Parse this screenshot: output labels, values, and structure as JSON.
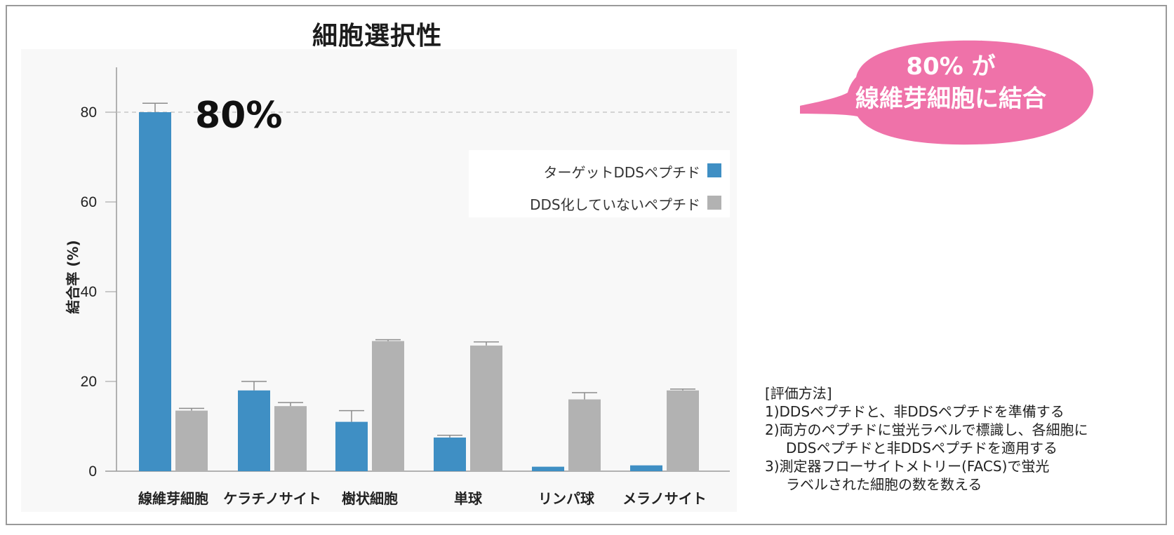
{
  "chart_data": {
    "type": "bar",
    "title": "細胞選択性",
    "ylabel": "結合率 (%)",
    "xlabel": "",
    "ylim": [
      0,
      90
    ],
    "yticks": [
      0,
      20,
      40,
      60,
      80
    ],
    "reference_line": 80,
    "categories": [
      "線維芽細胞",
      "ケラチノサイト",
      "樹状細胞",
      "単球",
      "リンパ球",
      "メラノサイト"
    ],
    "series": [
      {
        "name": "ターゲットDDSペプチド",
        "color": "#3f8fc4",
        "values": [
          80,
          18,
          11,
          7.5,
          1,
          1.3
        ],
        "errors": [
          2,
          2,
          2.5,
          0.5,
          0,
          0
        ]
      },
      {
        "name": "DDS化していないペプチド",
        "color": "#b2b2b2",
        "values": [
          13.5,
          14.5,
          29,
          28,
          16,
          18
        ],
        "errors": [
          0.5,
          0.8,
          0.3,
          0.8,
          1.5,
          0.3
        ]
      }
    ],
    "annotation": "80%"
  },
  "callout": {
    "line1": "80% が",
    "line2": "線維芽細胞に結合",
    "color": "#ef72a9"
  },
  "method": {
    "heading": "[評価方法]",
    "step1": "1)DDSペプチドと、非DDSペプチドを準備する",
    "step2a": "2)両方のペプチドに蛍光ラベルで標識し、各細胞に",
    "step2b": "DDSペプチドと非DDSペプチドを適用する",
    "step3a": "3)測定器フローサイトメトリー(FACS)で蛍光",
    "step3b": "ラベルされた細胞の数を数える"
  }
}
